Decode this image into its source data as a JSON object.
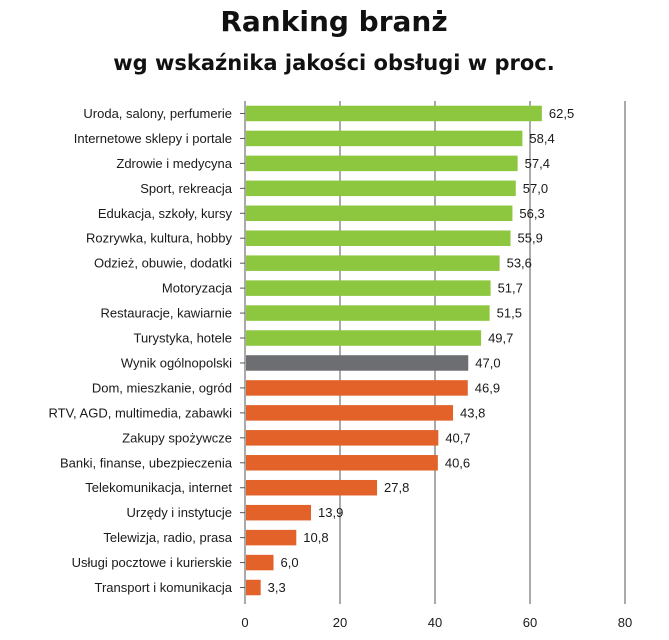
{
  "chart_data": {
    "type": "bar",
    "orientation": "horizontal",
    "title": "Ranking branż",
    "subtitle": "wg wskaźnika jakości obsługi w proc.",
    "xlabel": "",
    "ylabel": "",
    "xlim": [
      0,
      80
    ],
    "xticks": [
      "0",
      "20",
      "40",
      "60",
      "80"
    ],
    "grid": "vertical",
    "legend": "none",
    "colors": {
      "above": "#8dc63f",
      "national": "#6d6e71",
      "below": "#e2622a"
    },
    "categories": [
      "Uroda, salony, perfumerie",
      "Internetowe sklepy i portale",
      "Zdrowie i medycyna",
      "Sport, rekreacja",
      "Edukacja, szkoły, kursy",
      "Rozrywka, kultura, hobby",
      "Odzież, obuwie, dodatki",
      "Motoryzacja",
      "Restauracje, kawiarnie",
      "Turystyka, hotele",
      "Wynik ogólnopolski",
      "Dom, mieszkanie, ogród",
      "RTV, AGD, multimedia, zabawki",
      "Zakupy  spożywcze",
      "Banki, finanse, ubezpieczenia",
      "Telekomunikacja, internet",
      "Urzędy i instytucje",
      "Telewizja, radio, prasa",
      "Usługi pocztowe i kurierskie",
      "Transport i komunikacja"
    ],
    "values": [
      62.5,
      58.4,
      57.4,
      57.0,
      56.3,
      55.9,
      53.6,
      51.7,
      51.5,
      49.7,
      47.0,
      46.9,
      43.8,
      40.7,
      40.6,
      27.8,
      13.9,
      10.8,
      6.0,
      3.3
    ],
    "value_labels": [
      "62,5",
      "58,4",
      "57,4",
      "57,0",
      "56,3",
      "55,9",
      "53,6",
      "51,7",
      "51,5",
      "49,7",
      "47,0",
      "46,9",
      "43,8",
      "40,7",
      "40,6",
      "27,8",
      "13,9",
      "10,8",
      "6,0",
      "3,3"
    ],
    "groups": [
      "above",
      "above",
      "above",
      "above",
      "above",
      "above",
      "above",
      "above",
      "above",
      "above",
      "national",
      "below",
      "below",
      "below",
      "below",
      "below",
      "below",
      "below",
      "below",
      "below"
    ]
  }
}
